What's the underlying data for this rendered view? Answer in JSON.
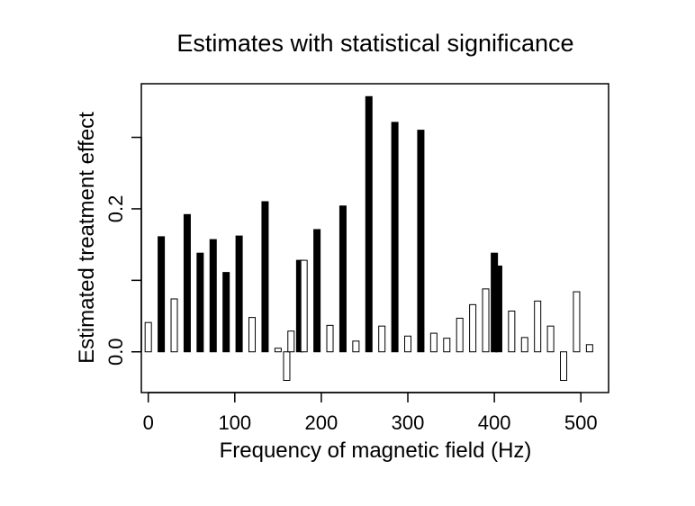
{
  "chart_data": {
    "type": "bar",
    "title": "Estimates with statistical significance",
    "xlabel": "Frequency of magnetic field (Hz)",
    "ylabel": "Estimated treatment effect",
    "xlim": [
      -8,
      532
    ],
    "ylim": [
      -0.057,
      0.375
    ],
    "x_ticks": [
      0,
      100,
      200,
      300,
      400,
      500
    ],
    "x_tick_labels": [
      "0",
      "100",
      "200",
      "300",
      "400",
      "500"
    ],
    "y_ticks": [
      0.0,
      0.1,
      0.2,
      0.3
    ],
    "y_tick_labels": [
      "0.0",
      "",
      "0.2",
      ""
    ],
    "legend": "none",
    "grid": false,
    "fill_colors": {
      "significant": "#000000",
      "not_significant": "#ffffff"
    },
    "series": [
      {
        "x": [
          0,
          15,
          30,
          45,
          60,
          75,
          90,
          105,
          120,
          135,
          150,
          160,
          165,
          175,
          180,
          195,
          210,
          225,
          240,
          255,
          270,
          285,
          300,
          315,
          330,
          345,
          360,
          375,
          390,
          400,
          405,
          420,
          435,
          450,
          465,
          480,
          495,
          510
        ],
        "values": [
          0.041,
          0.161,
          0.074,
          0.192,
          0.138,
          0.157,
          0.111,
          0.162,
          0.048,
          0.21,
          0.005,
          -0.04,
          0.029,
          0.128,
          0.128,
          0.171,
          0.037,
          0.204,
          0.015,
          0.357,
          0.036,
          0.321,
          0.022,
          0.31,
          0.026,
          0.019,
          0.047,
          0.066,
          0.088,
          0.138,
          0.12,
          0.057,
          0.02,
          0.071,
          0.036,
          -0.04,
          0.084,
          0.01
        ],
        "significant": [
          false,
          true,
          false,
          true,
          true,
          true,
          true,
          true,
          false,
          true,
          false,
          false,
          false,
          true,
          false,
          true,
          false,
          true,
          false,
          true,
          false,
          true,
          false,
          true,
          false,
          false,
          false,
          false,
          false,
          true,
          true,
          false,
          false,
          false,
          false,
          false,
          false,
          false
        ]
      }
    ]
  }
}
